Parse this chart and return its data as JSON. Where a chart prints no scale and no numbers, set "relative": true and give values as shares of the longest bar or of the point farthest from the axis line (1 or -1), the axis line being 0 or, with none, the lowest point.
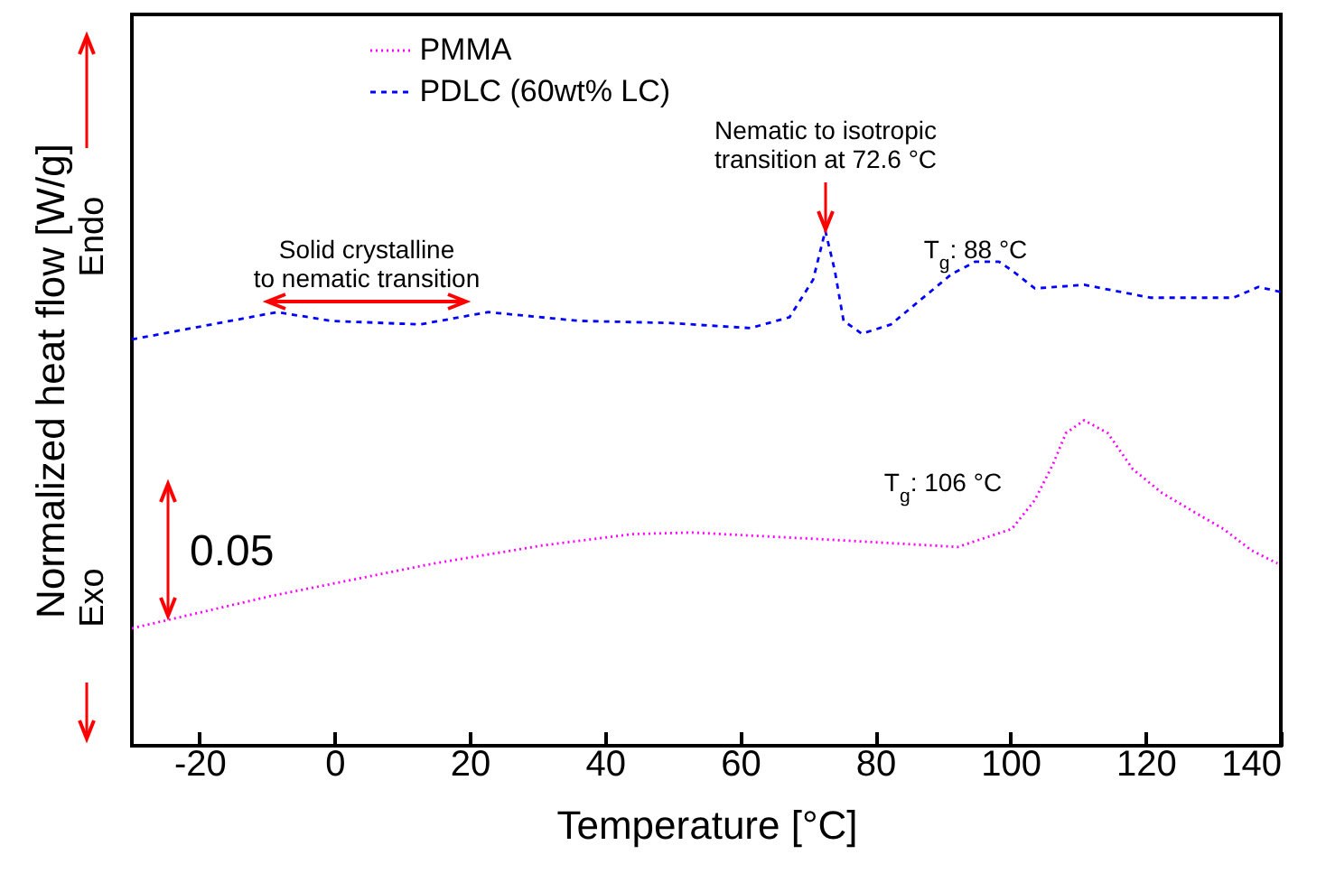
{
  "chart_data": {
    "type": "line",
    "relative": true,
    "xlabel": "Temperature [°C]",
    "ylabel": "Normalized heat flow [W/g]",
    "xlim": [
      -30,
      140
    ],
    "xticks": [
      -20,
      0,
      20,
      40,
      60,
      80,
      100,
      120,
      140
    ],
    "legend": "top",
    "grid": false,
    "marker": "none",
    "series": [
      {
        "name": "PMMA",
        "color": "#ff00ff",
        "line_style": "dotted",
        "x": [
          -30,
          -9.3,
          14.7,
          30.8,
          44.1,
          52.9,
          73.5,
          92.2,
          100.2,
          103.6,
          106.3,
          108.2,
          110.9,
          114.4,
          118.1,
          122.4,
          126.9,
          131.5,
          135.7,
          139.5
        ],
        "values": [
          0.228,
          0.291,
          0.354,
          0.389,
          0.411,
          0.414,
          0.4,
          0.386,
          0.421,
          0.477,
          0.547,
          0.607,
          0.632,
          0.607,
          0.537,
          0.491,
          0.456,
          0.421,
          0.379,
          0.354
        ]
      },
      {
        "name": "PDLC (60wt% LC)",
        "color": "#0000ff",
        "line_style": "dashed",
        "x": [
          -30,
          -8.5,
          -0.5,
          12.6,
          22.7,
          36.1,
          49.4,
          61.5,
          67.3,
          70.8,
          72.6,
          74.0,
          75.3,
          78.0,
          82.3,
          86.8,
          91.3,
          94.8,
          98.3,
          100.2,
          103.6,
          110.9,
          120.7,
          133.0,
          136.7,
          140
        ],
        "values": [
          0.789,
          0.842,
          0.825,
          0.818,
          0.842,
          0.825,
          0.821,
          0.811,
          0.832,
          0.905,
          1,
          0.923,
          0.825,
          0.8,
          0.818,
          0.867,
          0.916,
          0.94,
          0.94,
          0.923,
          0.888,
          0.895,
          0.87,
          0.87,
          0.891,
          0.881
        ]
      }
    ],
    "annotations": [
      "Solid crystalline\nto nematic transition",
      "Nematic to isotropic\ntransition at 72.6 °C",
      "T$_{g}$: 88 °C",
      "T$_{g}$: 106 °C",
      "0.05",
      "Endo",
      "Exo"
    ]
  }
}
